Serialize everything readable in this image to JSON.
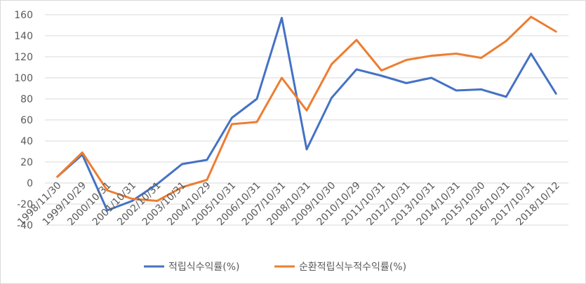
{
  "chart_data": {
    "type": "line",
    "title": "",
    "xlabel": "",
    "ylabel": "",
    "ylim": [
      -40,
      160
    ],
    "yticks": [
      -40,
      -20,
      0,
      20,
      40,
      60,
      80,
      100,
      120,
      140,
      160
    ],
    "grid": true,
    "legend_position": "bottom",
    "categories": [
      "1998/11/30",
      "1999/10/29",
      "2000/10/31",
      "2001/10/31",
      "2002/10/31",
      "2003/10/31",
      "2004/10/29",
      "2005/10/31",
      "2006/10/31",
      "2007/10/31",
      "2008/10/31",
      "2009/10/30",
      "2010/10/29",
      "2011/10/31",
      "2012/10/31",
      "2013/10/31",
      "2014/10/31",
      "2015/10/30",
      "2016/10/31",
      "2017/10/31",
      "2018/10/12"
    ],
    "series": [
      {
        "name": "적립식수익률(%)",
        "color": "#4472C4",
        "values": [
          6,
          27,
          -26,
          -17,
          -1,
          18,
          22,
          62,
          80,
          157,
          32,
          81,
          108,
          102,
          95,
          100,
          88,
          89,
          82,
          123,
          85
        ]
      },
      {
        "name": "순환적립식누적수익률(%)",
        "color": "#ED7D31",
        "values": [
          6,
          29,
          -7,
          -15,
          -17,
          -4,
          3,
          56,
          58,
          100,
          69,
          113,
          136,
          107,
          117,
          121,
          123,
          119,
          135,
          158,
          144
        ]
      }
    ]
  }
}
